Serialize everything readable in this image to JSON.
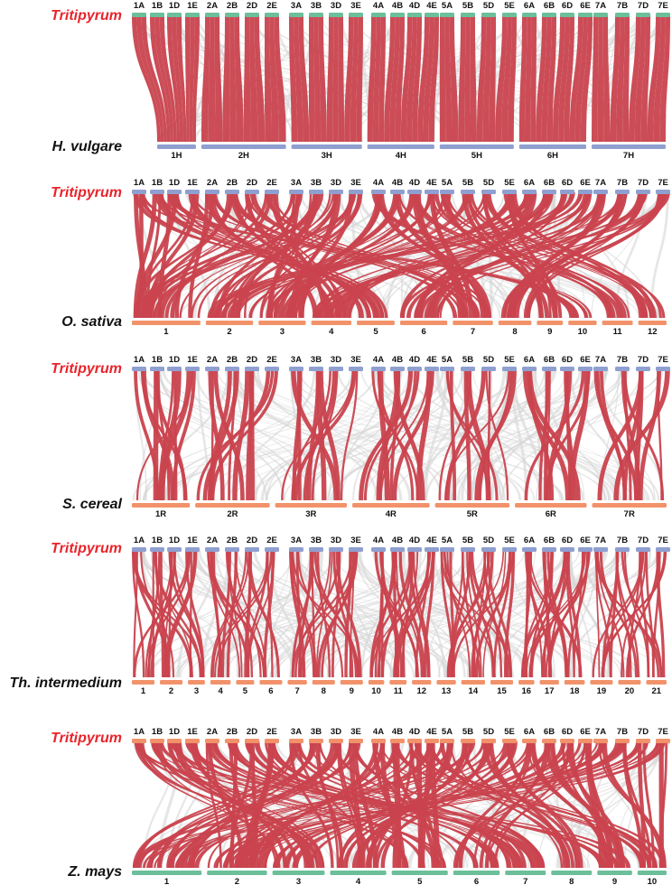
{
  "colors": {
    "syntenic_highlight": "#c9434e",
    "syntenic_background": "#d6d6d6",
    "chrom_blue": "#8f9fd0",
    "chrom_green": "#6bbf9a",
    "chrom_orange": "#f2926a",
    "top_label": "#e8242b",
    "bottom_label": "#111111"
  },
  "panels": [
    {
      "id": "hv",
      "top_label": "Tritipyrum",
      "bottom_label": "H. vulgare",
      "top_color": "green",
      "bottom_color": "blue",
      "top_chromosomes": [
        "1A",
        "1B",
        "1D",
        "1E",
        "2A",
        "2B",
        "2D",
        "2E",
        "3A",
        "3B",
        "3D",
        "3E",
        "4A",
        "4B",
        "4D",
        "4E",
        "5A",
        "5B",
        "5D",
        "5E",
        "6A",
        "6B",
        "6D",
        "6E",
        "7A",
        "7B",
        "7D",
        "7E"
      ],
      "bottom_chromosomes": [
        "1H",
        "2H",
        "3H",
        "4H",
        "5H",
        "6H",
        "7H"
      ]
    },
    {
      "id": "os",
      "top_label": "Tritipyrum",
      "bottom_label": "O. sativa",
      "top_color": "blue",
      "bottom_color": "orange",
      "top_chromosomes": [
        "1A",
        "1B",
        "1D",
        "1E",
        "2A",
        "2B",
        "2D",
        "2E",
        "3A",
        "3B",
        "3D",
        "3E",
        "4A",
        "4B",
        "4D",
        "4E",
        "5A",
        "5B",
        "5D",
        "5E",
        "6A",
        "6B",
        "6D",
        "6E",
        "7A",
        "7B",
        "7D",
        "7E"
      ],
      "bottom_chromosomes": [
        "1",
        "2",
        "3",
        "4",
        "5",
        "6",
        "7",
        "8",
        "9",
        "10",
        "11",
        "12"
      ]
    },
    {
      "id": "sc",
      "top_label": "Tritipyrum",
      "bottom_label": "S. cereal",
      "top_color": "blue",
      "bottom_color": "orange",
      "top_chromosomes": [
        "1A",
        "1B",
        "1D",
        "1E",
        "2A",
        "2B",
        "2D",
        "2E",
        "3A",
        "3B",
        "3D",
        "3E",
        "4A",
        "4B",
        "4D",
        "4E",
        "5A",
        "5B",
        "5D",
        "5E",
        "6A",
        "6B",
        "6D",
        "6E",
        "7A",
        "7B",
        "7D",
        "7E"
      ],
      "bottom_chromosomes": [
        "1R",
        "2R",
        "3R",
        "4R",
        "5R",
        "6R",
        "7R"
      ]
    },
    {
      "id": "ti",
      "top_label": "Tritipyrum",
      "bottom_label": "Th. intermedium",
      "top_color": "blue",
      "bottom_color": "orange",
      "top_chromosomes": [
        "1A",
        "1B",
        "1D",
        "1E",
        "2A",
        "2B",
        "2D",
        "2E",
        "3A",
        "3B",
        "3D",
        "3E",
        "4A",
        "4B",
        "4D",
        "4E",
        "5A",
        "5B",
        "5D",
        "5E",
        "6A",
        "6B",
        "6D",
        "6E",
        "7A",
        "7B",
        "7D",
        "7E"
      ],
      "bottom_chromosomes": [
        "1",
        "2",
        "3",
        "4",
        "5",
        "6",
        "7",
        "8",
        "9",
        "10",
        "11",
        "12",
        "13",
        "14",
        "15",
        "16",
        "17",
        "18",
        "19",
        "20",
        "21"
      ]
    },
    {
      "id": "zm",
      "top_label": "Tritipyrum",
      "bottom_label": "Z. mays",
      "top_color": "orange",
      "bottom_color": "green",
      "top_chromosomes": [
        "1A",
        "1B",
        "1D",
        "1E",
        "2A",
        "2B",
        "2D",
        "2E",
        "3A",
        "3B",
        "3D",
        "3E",
        "4A",
        "4B",
        "4D",
        "4E",
        "5A",
        "5B",
        "5D",
        "5E",
        "6A",
        "6B",
        "6D",
        "6E",
        "7A",
        "7B",
        "7D",
        "7E"
      ],
      "bottom_chromosomes": [
        "1",
        "2",
        "3",
        "4",
        "5",
        "6",
        "7",
        "8",
        "9",
        "10"
      ]
    }
  ]
}
